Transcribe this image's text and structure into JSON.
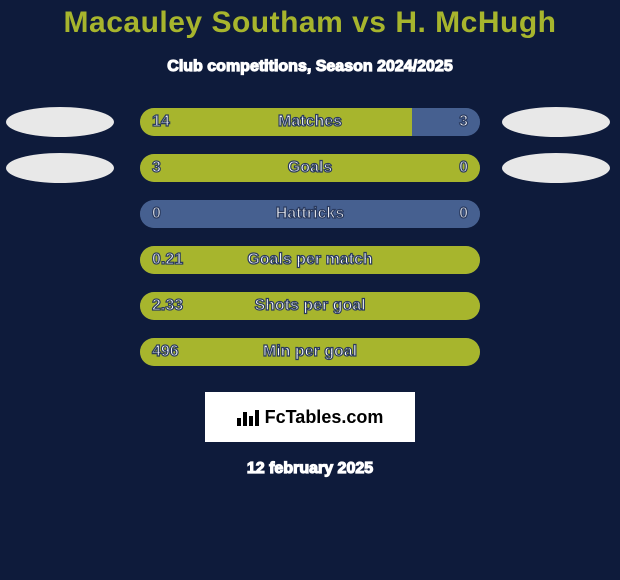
{
  "colors": {
    "background": "#0e1b3b",
    "title": "#a7b52d",
    "subtitle": "#ffffff",
    "text_stroke": "#2a3a5e",
    "text_fill": "#ffffff",
    "track": "#3a4a6a",
    "bar_left": "#a7b52d",
    "bar_right": "#466090",
    "oval_left": "#e8e8e8",
    "oval_right": "#e8e8e8",
    "logo_bg": "#ffffff",
    "date": "#ffffff"
  },
  "title": "Macauley Southam vs H. McHugh",
  "subtitle": "Club competitions, Season 2024/2025",
  "logo_text": "FcTables.com",
  "date": "12 february 2025",
  "text_stroke_width": 1.2,
  "title_fontsize": 30,
  "subtitle_fontsize": 16,
  "label_fontsize": 16,
  "bar_track_width": 340,
  "bar_track_height": 28,
  "oval_width": 108,
  "oval_height": 30,
  "rows": [
    {
      "label": "Matches",
      "left_val": "14",
      "right_val": "3",
      "left_pct": 80,
      "show_ovals": true
    },
    {
      "label": "Goals",
      "left_val": "3",
      "right_val": "0",
      "left_pct": 100,
      "show_ovals": true
    },
    {
      "label": "Hattricks",
      "left_val": "0",
      "right_val": "0",
      "left_pct": 0,
      "show_ovals": false
    },
    {
      "label": "Goals per match",
      "left_val": "0.21",
      "right_val": "",
      "left_pct": 100,
      "show_ovals": false
    },
    {
      "label": "Shots per goal",
      "left_val": "2.33",
      "right_val": "",
      "left_pct": 100,
      "show_ovals": false
    },
    {
      "label": "Min per goal",
      "left_val": "496",
      "right_val": "",
      "left_pct": 100,
      "show_ovals": false
    }
  ]
}
